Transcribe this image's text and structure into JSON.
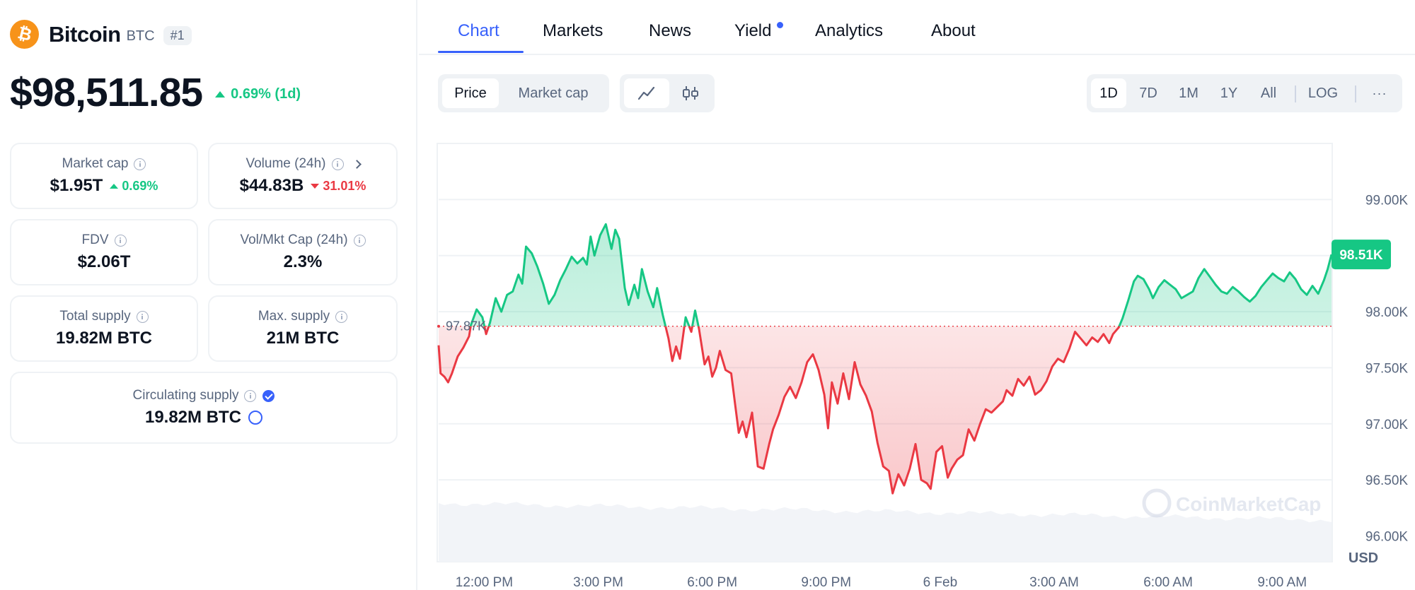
{
  "coin": {
    "name": "Bitcoin",
    "symbol": "BTC",
    "rank": "#1",
    "price": "$98,511.85",
    "change": "0.69% (1d)",
    "colors": {
      "logo": "#f7931a",
      "up": "#16c784",
      "down": "#ea3943",
      "accent": "#3861fb"
    }
  },
  "stats": {
    "market_cap": {
      "label": "Market cap",
      "value": "$1.95T",
      "change": "0.69%"
    },
    "volume": {
      "label": "Volume (24h)",
      "value": "$44.83B",
      "change": "31.01%"
    },
    "fdv": {
      "label": "FDV",
      "value": "$2.06T"
    },
    "vol_mkt_cap": {
      "label": "Vol/Mkt Cap (24h)",
      "value": "2.3%"
    },
    "total_supply": {
      "label": "Total supply",
      "value": "19.82M BTC"
    },
    "max_supply": {
      "label": "Max. supply",
      "value": "21M BTC"
    },
    "circulating_supply": {
      "label": "Circulating supply",
      "value": "19.82M BTC"
    }
  },
  "tabs": [
    {
      "label": "Chart",
      "active": true
    },
    {
      "label": "Markets"
    },
    {
      "label": "News"
    },
    {
      "label": "Yield",
      "badge_dot": true
    },
    {
      "label": "Analytics"
    },
    {
      "label": "About"
    }
  ],
  "controls": {
    "metric": {
      "price": "Price",
      "market_cap": "Market cap"
    },
    "chart_type_icons": [
      "line-chart-icon",
      "candlestick-icon"
    ],
    "ranges": [
      "1D",
      "7D",
      "1M",
      "1Y",
      "All"
    ],
    "log": "LOG",
    "more": "···"
  },
  "chart_data": {
    "type": "line",
    "currency": "USD",
    "watermark": "CoinMarketCap",
    "baseline": 97870,
    "baseline_label": "97.87K",
    "current_label": "98.51K",
    "ylim": [
      95770,
      99500
    ],
    "yticks": [
      {
        "value": 99000,
        "label": "99.00K"
      },
      {
        "value": 98500,
        "label": ""
      },
      {
        "value": 98000,
        "label": "98.00K"
      },
      {
        "value": 97500,
        "label": "97.50K"
      },
      {
        "value": 97000,
        "label": "97.00K"
      },
      {
        "value": 96500,
        "label": "96.50K"
      },
      {
        "value": 96000,
        "label": "96.00K"
      }
    ],
    "x_hours_span": [
      10.8,
      34.3
    ],
    "xticks": [
      {
        "hour": 12,
        "label": "12:00 PM"
      },
      {
        "hour": 15,
        "label": "3:00 PM"
      },
      {
        "hour": 18,
        "label": "6:00 PM"
      },
      {
        "hour": 21,
        "label": "9:00 PM"
      },
      {
        "hour": 24,
        "label": "6 Feb"
      },
      {
        "hour": 27,
        "label": "3:00 AM"
      },
      {
        "hour": 30,
        "label": "6:00 AM"
      },
      {
        "hour": 33,
        "label": "9:00 AM"
      }
    ],
    "points": [
      [
        10.8,
        97700
      ],
      [
        10.85,
        97450
      ],
      [
        10.95,
        97420
      ],
      [
        11.05,
        97370
      ],
      [
        11.15,
        97450
      ],
      [
        11.3,
        97600
      ],
      [
        11.45,
        97680
      ],
      [
        11.6,
        97780
      ],
      [
        11.65,
        97880
      ],
      [
        11.8,
        98020
      ],
      [
        11.95,
        97950
      ],
      [
        12.05,
        97800
      ],
      [
        12.15,
        97900
      ],
      [
        12.3,
        98120
      ],
      [
        12.45,
        98000
      ],
      [
        12.6,
        98150
      ],
      [
        12.75,
        98180
      ],
      [
        12.9,
        98330
      ],
      [
        13.0,
        98250
      ],
      [
        13.1,
        98580
      ],
      [
        13.25,
        98520
      ],
      [
        13.4,
        98400
      ],
      [
        13.55,
        98250
      ],
      [
        13.7,
        98070
      ],
      [
        13.85,
        98150
      ],
      [
        14.0,
        98280
      ],
      [
        14.15,
        98380
      ],
      [
        14.3,
        98490
      ],
      [
        14.45,
        98430
      ],
      [
        14.6,
        98480
      ],
      [
        14.7,
        98420
      ],
      [
        14.8,
        98670
      ],
      [
        14.9,
        98500
      ],
      [
        15.05,
        98680
      ],
      [
        15.2,
        98780
      ],
      [
        15.35,
        98560
      ],
      [
        15.45,
        98730
      ],
      [
        15.55,
        98650
      ],
      [
        15.7,
        98210
      ],
      [
        15.8,
        98060
      ],
      [
        15.95,
        98240
      ],
      [
        16.05,
        98120
      ],
      [
        16.15,
        98380
      ],
      [
        16.3,
        98180
      ],
      [
        16.45,
        98040
      ],
      [
        16.55,
        98210
      ],
      [
        16.7,
        97970
      ],
      [
        16.85,
        97760
      ],
      [
        16.95,
        97560
      ],
      [
        17.05,
        97690
      ],
      [
        17.15,
        97580
      ],
      [
        17.3,
        97950
      ],
      [
        17.45,
        97820
      ],
      [
        17.55,
        98010
      ],
      [
        17.65,
        97850
      ],
      [
        17.8,
        97530
      ],
      [
        17.9,
        97600
      ],
      [
        18.0,
        97420
      ],
      [
        18.1,
        97500
      ],
      [
        18.2,
        97650
      ],
      [
        18.35,
        97480
      ],
      [
        18.5,
        97450
      ],
      [
        18.6,
        97180
      ],
      [
        18.7,
        96920
      ],
      [
        18.8,
        97020
      ],
      [
        18.9,
        96880
      ],
      [
        19.05,
        97100
      ],
      [
        19.2,
        96620
      ],
      [
        19.35,
        96600
      ],
      [
        19.5,
        96820
      ],
      [
        19.6,
        96950
      ],
      [
        19.75,
        97080
      ],
      [
        19.9,
        97240
      ],
      [
        20.05,
        97330
      ],
      [
        20.2,
        97230
      ],
      [
        20.35,
        97370
      ],
      [
        20.5,
        97550
      ],
      [
        20.65,
        97620
      ],
      [
        20.8,
        97480
      ],
      [
        20.95,
        97260
      ],
      [
        21.05,
        96960
      ],
      [
        21.15,
        97370
      ],
      [
        21.3,
        97180
      ],
      [
        21.45,
        97450
      ],
      [
        21.6,
        97220
      ],
      [
        21.75,
        97550
      ],
      [
        21.9,
        97350
      ],
      [
        22.05,
        97250
      ],
      [
        22.2,
        97110
      ],
      [
        22.35,
        96830
      ],
      [
        22.5,
        96620
      ],
      [
        22.65,
        96580
      ],
      [
        22.75,
        96380
      ],
      [
        22.9,
        96550
      ],
      [
        23.05,
        96450
      ],
      [
        23.2,
        96600
      ],
      [
        23.35,
        96820
      ],
      [
        23.5,
        96500
      ],
      [
        23.65,
        96470
      ],
      [
        23.75,
        96420
      ],
      [
        23.9,
        96750
      ],
      [
        24.05,
        96800
      ],
      [
        24.2,
        96520
      ],
      [
        24.3,
        96600
      ],
      [
        24.45,
        96680
      ],
      [
        24.6,
        96720
      ],
      [
        24.75,
        96950
      ],
      [
        24.9,
        96850
      ],
      [
        25.05,
        97000
      ],
      [
        25.2,
        97130
      ],
      [
        25.35,
        97100
      ],
      [
        25.5,
        97150
      ],
      [
        25.65,
        97200
      ],
      [
        25.75,
        97300
      ],
      [
        25.9,
        97250
      ],
      [
        26.05,
        97400
      ],
      [
        26.2,
        97340
      ],
      [
        26.35,
        97420
      ],
      [
        26.5,
        97260
      ],
      [
        26.65,
        97300
      ],
      [
        26.8,
        97380
      ],
      [
        26.95,
        97510
      ],
      [
        27.1,
        97580
      ],
      [
        27.25,
        97550
      ],
      [
        27.4,
        97670
      ],
      [
        27.55,
        97820
      ],
      [
        27.7,
        97760
      ],
      [
        27.85,
        97700
      ],
      [
        28.0,
        97770
      ],
      [
        28.15,
        97730
      ],
      [
        28.3,
        97800
      ],
      [
        28.45,
        97720
      ],
      [
        28.55,
        97800
      ],
      [
        28.7,
        97860
      ],
      [
        28.8,
        97940
      ],
      [
        28.95,
        98100
      ],
      [
        29.1,
        98270
      ],
      [
        29.2,
        98320
      ],
      [
        29.35,
        98290
      ],
      [
        29.5,
        98200
      ],
      [
        29.6,
        98120
      ],
      [
        29.75,
        98220
      ],
      [
        29.9,
        98280
      ],
      [
        30.05,
        98240
      ],
      [
        30.2,
        98200
      ],
      [
        30.35,
        98120
      ],
      [
        30.5,
        98150
      ],
      [
        30.65,
        98180
      ],
      [
        30.8,
        98300
      ],
      [
        30.95,
        98380
      ],
      [
        31.1,
        98310
      ],
      [
        31.25,
        98240
      ],
      [
        31.4,
        98180
      ],
      [
        31.55,
        98160
      ],
      [
        31.7,
        98220
      ],
      [
        31.85,
        98180
      ],
      [
        32.0,
        98130
      ],
      [
        32.15,
        98090
      ],
      [
        32.3,
        98140
      ],
      [
        32.45,
        98220
      ],
      [
        32.6,
        98280
      ],
      [
        32.75,
        98340
      ],
      [
        32.9,
        98300
      ],
      [
        33.05,
        98270
      ],
      [
        33.2,
        98350
      ],
      [
        33.35,
        98290
      ],
      [
        33.5,
        98200
      ],
      [
        33.65,
        98150
      ],
      [
        33.8,
        98230
      ],
      [
        33.95,
        98160
      ],
      [
        34.1,
        98280
      ],
      [
        34.2,
        98380
      ],
      [
        34.3,
        98510
      ]
    ]
  }
}
